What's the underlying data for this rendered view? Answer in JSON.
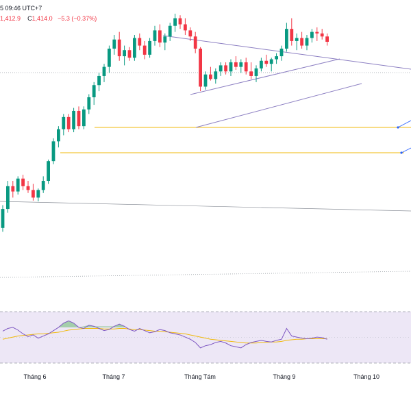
{
  "header": {
    "time_label": "5 09:46 UTC+7",
    "low_value": "1,412.9",
    "close_prefix": "C",
    "close_value": "1,414.0",
    "change": "−5.3 (−0.37%)"
  },
  "colors": {
    "up": "#089981",
    "down": "#f23645",
    "trendline": "#8c7fc2",
    "support": "#f0b90b",
    "rsi_line": "#7e57c2",
    "rsi_ma": "#f0b90b",
    "rsi_band": "#ede7f6",
    "overbought_fill": "#4caf50"
  },
  "chart_data": [
    {
      "type": "candlestick",
      "title": "",
      "x_axis": {
        "tick_labels": [
          "Tháng 6",
          "Tháng 7",
          "Tháng Tám",
          "Tháng 9",
          "Tháng 10"
        ]
      },
      "y_range": [
        1180,
        1500
      ],
      "candles": [
        [
          1200,
          1230,
          1195,
          1225
        ],
        [
          1225,
          1262,
          1220,
          1255
        ],
        [
          1255,
          1262,
          1240,
          1248
        ],
        [
          1248,
          1268,
          1244,
          1265
        ],
        [
          1265,
          1270,
          1250,
          1255
        ],
        [
          1255,
          1262,
          1246,
          1250
        ],
        [
          1250,
          1258,
          1236,
          1240
        ],
        [
          1240,
          1252,
          1235,
          1250
        ],
        [
          1250,
          1268,
          1246,
          1262
        ],
        [
          1262,
          1290,
          1258,
          1288
        ],
        [
          1288,
          1318,
          1284,
          1314
        ],
        [
          1314,
          1334,
          1306,
          1330
        ],
        [
          1330,
          1350,
          1322,
          1346
        ],
        [
          1346,
          1350,
          1326,
          1330
        ],
        [
          1330,
          1358,
          1326,
          1354
        ],
        [
          1354,
          1360,
          1330,
          1334
        ],
        [
          1334,
          1360,
          1330,
          1356
        ],
        [
          1356,
          1376,
          1350,
          1372
        ],
        [
          1372,
          1392,
          1362,
          1388
        ],
        [
          1388,
          1404,
          1380,
          1400
        ],
        [
          1400,
          1416,
          1392,
          1412
        ],
        [
          1412,
          1440,
          1404,
          1436
        ],
        [
          1436,
          1454,
          1428,
          1448
        ],
        [
          1448,
          1458,
          1420,
          1426
        ],
        [
          1426,
          1440,
          1414,
          1434
        ],
        [
          1434,
          1438,
          1420,
          1424
        ],
        [
          1424,
          1454,
          1420,
          1450
        ],
        [
          1450,
          1456,
          1434,
          1440
        ],
        [
          1440,
          1446,
          1422,
          1428
        ],
        [
          1428,
          1450,
          1424,
          1446
        ],
        [
          1446,
          1466,
          1440,
          1460
        ],
        [
          1460,
          1468,
          1438,
          1444
        ],
        [
          1444,
          1456,
          1434,
          1452
        ],
        [
          1452,
          1470,
          1446,
          1466
        ],
        [
          1466,
          1482,
          1458,
          1476
        ],
        [
          1476,
          1480,
          1462,
          1468
        ],
        [
          1468,
          1476,
          1454,
          1460
        ],
        [
          1460,
          1464,
          1446,
          1452
        ],
        [
          1452,
          1458,
          1430,
          1436
        ],
        [
          1436,
          1438,
          1380,
          1386
        ],
        [
          1386,
          1406,
          1382,
          1402
        ],
        [
          1402,
          1412,
          1394,
          1396
        ],
        [
          1396,
          1410,
          1390,
          1406
        ],
        [
          1406,
          1418,
          1400,
          1414
        ],
        [
          1414,
          1418,
          1402,
          1406
        ],
        [
          1406,
          1422,
          1400,
          1418
        ],
        [
          1418,
          1426,
          1408,
          1412
        ],
        [
          1412,
          1422,
          1404,
          1418
        ],
        [
          1418,
          1424,
          1402,
          1406
        ],
        [
          1406,
          1418,
          1396,
          1400
        ],
        [
          1400,
          1414,
          1392,
          1410
        ],
        [
          1410,
          1424,
          1406,
          1420
        ],
        [
          1420,
          1428,
          1412,
          1416
        ],
        [
          1416,
          1424,
          1406,
          1422
        ],
        [
          1422,
          1430,
          1416,
          1426
        ],
        [
          1426,
          1440,
          1420,
          1436
        ],
        [
          1436,
          1470,
          1432,
          1462
        ],
        [
          1462,
          1476,
          1440,
          1446
        ],
        [
          1446,
          1456,
          1434,
          1450
        ],
        [
          1450,
          1458,
          1436,
          1440
        ],
        [
          1440,
          1454,
          1434,
          1450
        ],
        [
          1450,
          1462,
          1444,
          1458
        ],
        [
          1458,
          1464,
          1446,
          1456
        ],
        [
          1456,
          1462,
          1448,
          1452
        ],
        [
          1452,
          1456,
          1440,
          1445
        ]
      ]
    },
    {
      "type": "line",
      "title": "",
      "y_range": [
        0,
        100
      ],
      "bands": [
        70,
        30
      ],
      "series": [
        {
          "values": [
            55,
            60,
            62,
            57,
            50,
            45,
            48,
            42,
            46,
            50,
            56,
            62,
            70,
            74,
            70,
            62,
            60,
            66,
            64,
            60,
            56,
            58,
            64,
            68,
            64,
            58,
            55,
            60,
            56,
            52,
            54,
            58,
            56,
            52,
            50,
            48,
            44,
            40,
            34,
            24,
            28,
            30,
            34,
            36,
            33,
            28,
            26,
            24,
            30,
            34,
            36,
            38,
            36,
            35,
            38,
            40,
            60,
            46,
            44,
            42,
            41,
            42,
            44,
            43,
            40
          ]
        },
        {
          "values": [
            40,
            42,
            44,
            46,
            47,
            48,
            49,
            50,
            50,
            51,
            52,
            53,
            55,
            57,
            58,
            59,
            60,
            60,
            60,
            60,
            59,
            59,
            59,
            60,
            60,
            59,
            58,
            58,
            57,
            56,
            55,
            55,
            54,
            53,
            52,
            51,
            50,
            48,
            46,
            44,
            42,
            40,
            39,
            38,
            37,
            36,
            35,
            34,
            33,
            33,
            33,
            34,
            34,
            35,
            35,
            36,
            38,
            39,
            40,
            40,
            41,
            41,
            41,
            41,
            41
          ]
        }
      ]
    }
  ]
}
